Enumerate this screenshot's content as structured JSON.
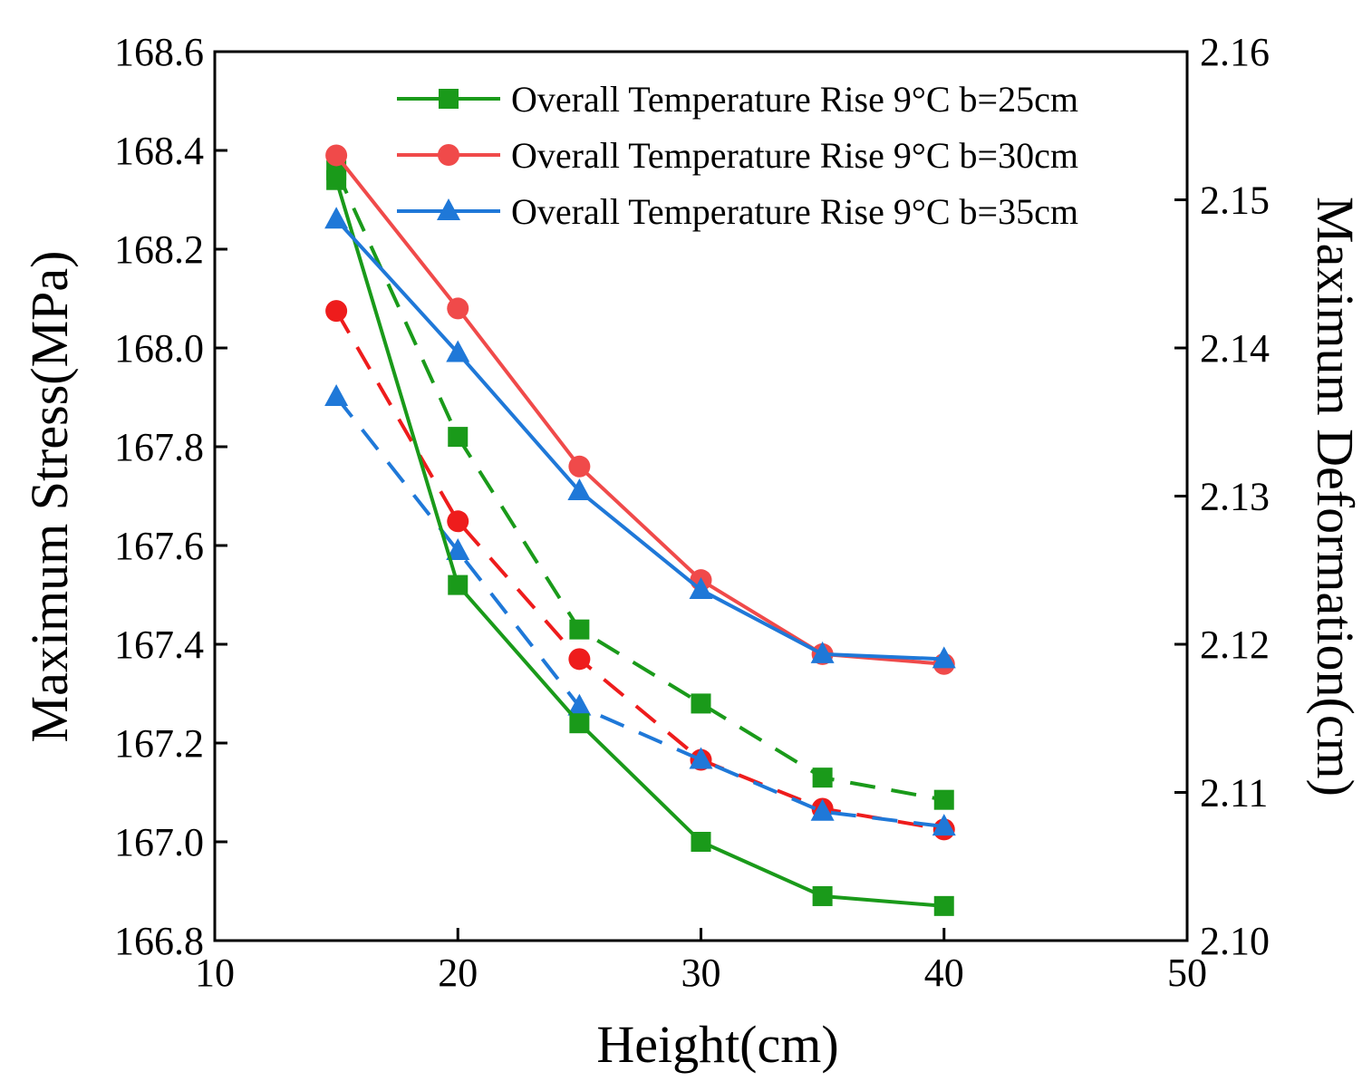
{
  "chart_data": {
    "type": "line",
    "xlabel": "Height(cm)",
    "ylabel_left": "Maximum Stress(MPa)",
    "ylabel_right": "Maximum Deformation(cm)",
    "xlim": [
      10,
      50
    ],
    "ylim_left": [
      166.8,
      168.6
    ],
    "ylim_right": [
      2.1,
      2.16
    ],
    "x_ticks": [
      "10",
      "20",
      "30",
      "40",
      "50"
    ],
    "y_left_ticks": [
      "166.8",
      "167.0",
      "167.2",
      "167.4",
      "167.6",
      "167.8",
      "168.0",
      "168.2",
      "168.4",
      "168.6"
    ],
    "y_right_ticks": [
      "2.10",
      "2.11",
      "2.12",
      "2.13",
      "2.14",
      "2.15",
      "2.16"
    ],
    "grid": false,
    "legend_position": "top-right",
    "x": [
      15,
      20,
      25,
      30,
      35,
      40
    ],
    "series": [
      {
        "name": "Overall Temperature Rise 9°C b=25cm",
        "axis": "left",
        "style": "solid",
        "marker": "square",
        "color": "#1a9a1a",
        "values": [
          168.34,
          167.52,
          167.24,
          167.0,
          166.89,
          166.87
        ]
      },
      {
        "name": "Overall Temperature Rise 9°C b=30cm",
        "axis": "left",
        "style": "solid",
        "marker": "circle",
        "color": "#f04a4a",
        "values": [
          168.39,
          168.08,
          167.76,
          167.53,
          167.38,
          167.36
        ]
      },
      {
        "name": "Overall Temperature Rise 9°C b=35cm",
        "axis": "left",
        "style": "solid",
        "marker": "triangle",
        "color": "#1f78d8",
        "values": [
          168.26,
          167.99,
          167.71,
          167.51,
          167.38,
          167.37
        ]
      },
      {
        "axis": "right",
        "style": "dashed",
        "marker": "square",
        "color": "#1a9a1a",
        "values": [
          2.152,
          2.134,
          2.121,
          2.116,
          2.111,
          2.1095
        ]
      },
      {
        "axis": "right",
        "style": "dashed",
        "marker": "circle",
        "color": "#ee1c1c",
        "values": [
          2.1425,
          2.1283,
          2.119,
          2.1122,
          2.1089,
          2.1075
        ]
      },
      {
        "axis": "right",
        "style": "dashed",
        "marker": "triangle",
        "color": "#1f78d8",
        "values": [
          2.1367,
          2.1263,
          2.1158,
          2.1122,
          2.1087,
          2.1077
        ]
      }
    ]
  }
}
